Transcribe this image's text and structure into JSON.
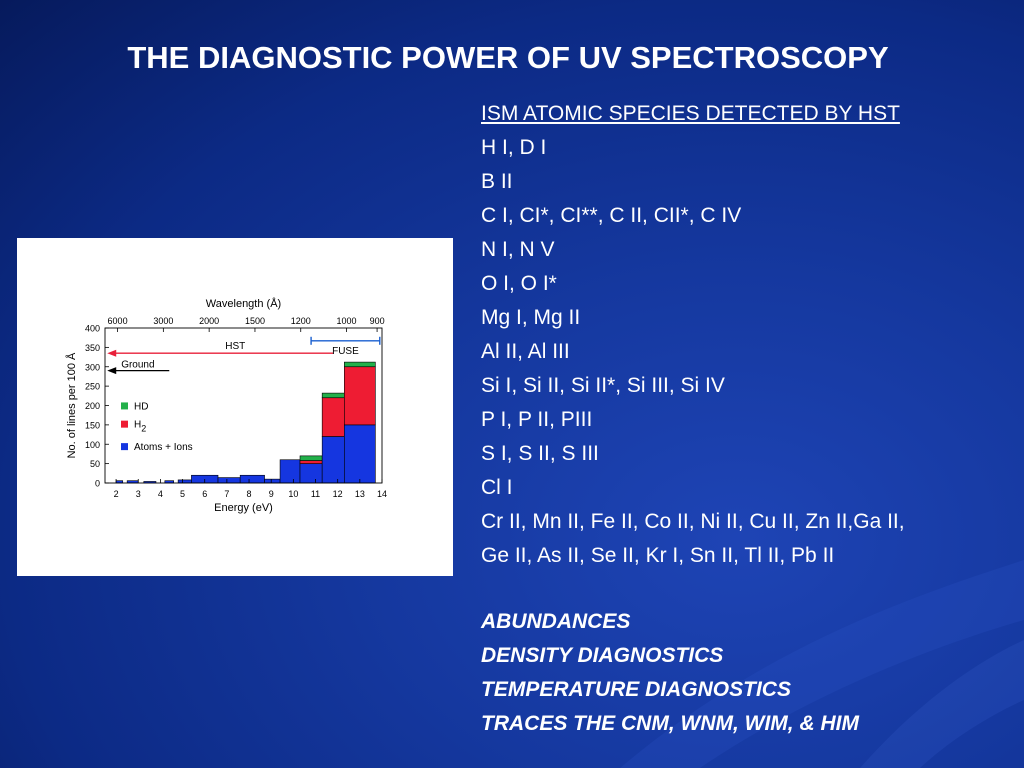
{
  "slide": {
    "title": "THE DIAGNOSTIC POWER OF UV SPECTROSCOPY",
    "species_header": "ISM ATOMIC SPECIES DETECTED BY HST",
    "species": [
      "H I, D I",
      "B II",
      "C I, CI*, CI**, C II, CII*, C IV",
      "N I, N V",
      "O I, O I*",
      "Mg I, Mg II",
      "Al II, Al III",
      "Si I, Si II, Si II*, Si III, Si IV",
      "P I, P II, PIII",
      "S I, S II, S III",
      "Cl I",
      "Cr II, Mn II, Fe II, Co II, Ni II, Cu II, Zn II,Ga II,",
      "Ge II, As II, Se II, Kr I, Sn II, Tl II, Pb II"
    ],
    "diagnostics": [
      "ABUNDANCES",
      "DENSITY DIAGNOSTICS",
      "TEMPERATURE DIAGNOSTICS",
      "TRACES THE CNM, WNM, WIM, & HIM"
    ]
  },
  "chart_data": {
    "type": "bar",
    "stacked": true,
    "xlabel": "Energy (eV)",
    "ylabel": "No. of lines per 100 Å",
    "top_axis_label": "Wavelength (Å)",
    "top_ticks": [
      "6000",
      "3000",
      "2000",
      "1500",
      "1200",
      "1000",
      "900"
    ],
    "top_tick_energies": [
      2.067,
      4.133,
      6.2,
      8.267,
      10.333,
      12.4,
      13.778
    ],
    "x_ticks": [
      2,
      3,
      4,
      5,
      6,
      7,
      8,
      9,
      10,
      11,
      12,
      13,
      14
    ],
    "xlim": [
      1.5,
      14
    ],
    "ylim": [
      0,
      400
    ],
    "y_ticks": [
      0,
      50,
      100,
      150,
      200,
      250,
      300,
      350,
      400
    ],
    "bins": [
      {
        "x0": 2.0,
        "x1": 2.3,
        "atoms": 6,
        "h2": 0,
        "hd": 0
      },
      {
        "x0": 2.5,
        "x1": 3.0,
        "atoms": 6,
        "h2": 0,
        "hd": 0
      },
      {
        "x0": 3.25,
        "x1": 3.8,
        "atoms": 4,
        "h2": 0,
        "hd": 0
      },
      {
        "x0": 4.2,
        "x1": 4.6,
        "atoms": 6,
        "h2": 0,
        "hd": 0
      },
      {
        "x0": 4.8,
        "x1": 5.4,
        "atoms": 8,
        "h2": 0,
        "hd": 0
      },
      {
        "x0": 5.4,
        "x1": 6.6,
        "atoms": 20,
        "h2": 0,
        "hd": 0
      },
      {
        "x0": 6.6,
        "x1": 7.6,
        "atoms": 14,
        "h2": 0,
        "hd": 0
      },
      {
        "x0": 7.6,
        "x1": 8.7,
        "atoms": 20,
        "h2": 0,
        "hd": 0
      },
      {
        "x0": 8.7,
        "x1": 9.4,
        "atoms": 10,
        "h2": 0,
        "hd": 0
      },
      {
        "x0": 9.4,
        "x1": 10.3,
        "atoms": 60,
        "h2": 0,
        "hd": 0
      },
      {
        "x0": 10.3,
        "x1": 11.3,
        "atoms": 50,
        "h2": 8,
        "hd": 12
      },
      {
        "x0": 11.3,
        "x1": 12.3,
        "atoms": 120,
        "h2": 100,
        "hd": 12
      },
      {
        "x0": 12.3,
        "x1": 13.7,
        "atoms": 150,
        "h2": 150,
        "hd": 12
      }
    ],
    "legend": [
      {
        "name": "HD",
        "color": "#22b04a"
      },
      {
        "name": "H",
        "sub": "2",
        "color": "#ee1c33"
      },
      {
        "name": "Atoms + Ions",
        "color": "#1536e0"
      }
    ],
    "annotations": {
      "hst": {
        "label": "HST",
        "from": 11.8,
        "to": 1.6,
        "y": 335,
        "color": "#e8203a"
      },
      "fuse": {
        "label": "FUSE",
        "from": 10.8,
        "to": 13.9,
        "y": 367,
        "color": "#1a5fd0"
      },
      "ground": {
        "label": "Ground",
        "from": 4.4,
        "to": 1.6,
        "y": 290,
        "color": "#000000"
      }
    }
  }
}
